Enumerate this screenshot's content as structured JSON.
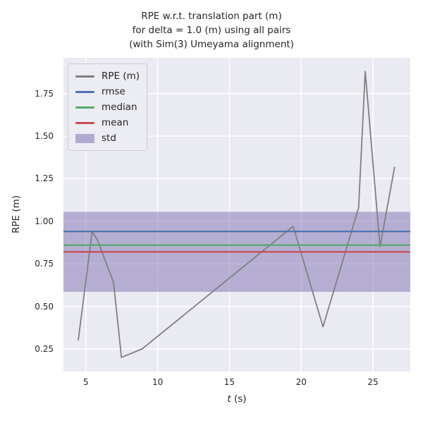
{
  "title": {
    "line1": "RPE w.r.t. translation part (m)",
    "line2": "for delta = 1.0 (m) using all pairs",
    "line3": "(with Sim(3) Umeyama alignment)"
  },
  "axes": {
    "xlabel_symbol": "t",
    "xlabel_unit": " (s)",
    "ylabel": "RPE (m)",
    "x_tick_labels": [
      "5",
      "10",
      "15",
      "20",
      "25"
    ],
    "y_tick_labels": [
      "0.25",
      "0.50",
      "0.75",
      "1.00",
      "1.25",
      "1.50",
      "1.75"
    ]
  },
  "legend": {
    "items": [
      {
        "label": "RPE (m)",
        "type": "line",
        "color": "#7f7f7f"
      },
      {
        "label": "rmse",
        "type": "line",
        "color": "#4c72b0"
      },
      {
        "label": "median",
        "type": "line",
        "color": "#55a868"
      },
      {
        "label": "mean",
        "type": "line",
        "color": "#c44e52"
      },
      {
        "label": "std",
        "type": "patch",
        "color": "#8172b2"
      }
    ]
  },
  "colors": {
    "figure_bg": "#ffffff",
    "axes_bg": "#eaeaf2",
    "grid": "#ffffff",
    "text": "#262626",
    "rpe_line": "#7f7f7f",
    "rmse": "#4c72b0",
    "median": "#55a868",
    "mean": "#c44e52",
    "std_fill": "#8172b2"
  },
  "chart_data": {
    "type": "line",
    "title": "RPE w.r.t. translation part (m) for delta = 1.0 (m) using all pairs (with Sim(3) Umeyama alignment)",
    "xlabel": "t (s)",
    "ylabel": "RPE (m)",
    "xlim": [
      3.44,
      27.6
    ],
    "ylim": [
      0.117,
      1.96
    ],
    "x_ticks": [
      5,
      10,
      15,
      20,
      25
    ],
    "y_ticks": [
      0.25,
      0.5,
      0.75,
      1.0,
      1.25,
      1.5,
      1.75
    ],
    "grid": true,
    "legend_position": "upper left",
    "series": [
      {
        "name": "std",
        "type": "band",
        "color": "#8172b2",
        "range": [
          0.585,
          1.055
        ]
      },
      {
        "name": "RPE (m)",
        "type": "line",
        "color": "#7f7f7f",
        "x": [
          4.47,
          5.44,
          5.81,
          6.93,
          7.48,
          8.92,
          19.44,
          21.52,
          24.0,
          24.46,
          25.49,
          26.51
        ],
        "y": [
          0.3,
          0.94,
          0.89,
          0.64,
          0.2,
          0.25,
          0.97,
          0.38,
          1.08,
          1.88,
          0.85,
          1.32
        ]
      },
      {
        "name": "rmse",
        "type": "hline",
        "color": "#4c72b0",
        "value": 0.94
      },
      {
        "name": "median",
        "type": "hline",
        "color": "#55a868",
        "value": 0.86
      },
      {
        "name": "mean",
        "type": "hline",
        "color": "#c44e52",
        "value": 0.82
      }
    ]
  }
}
